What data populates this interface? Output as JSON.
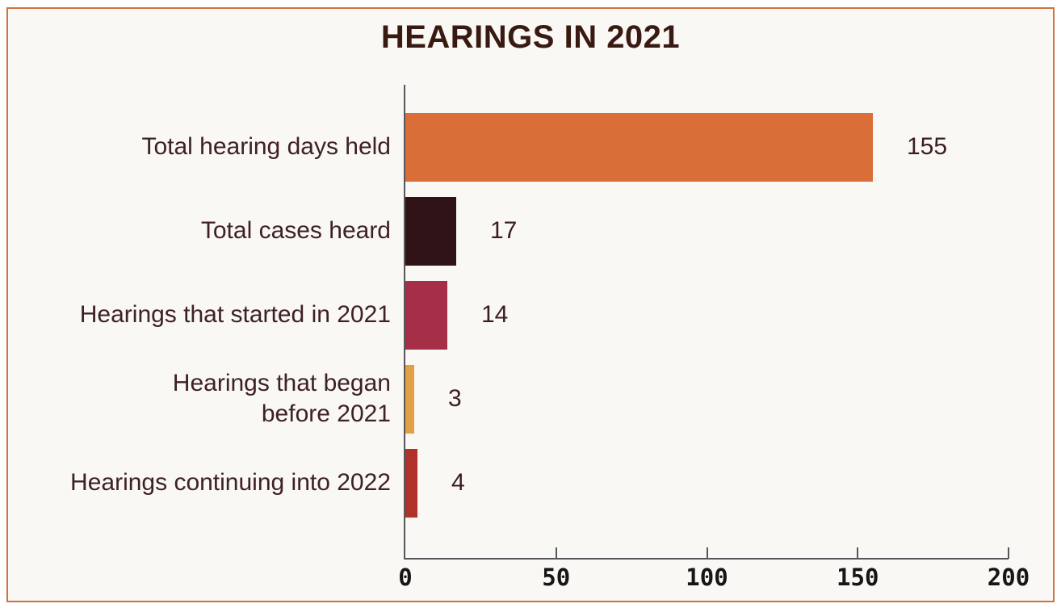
{
  "frame": {
    "border_color": "#d4713a",
    "background_color": "#faf8f4"
  },
  "chart_data": {
    "type": "bar",
    "orientation": "horizontal",
    "title": "HEARINGS IN 2021",
    "categories": [
      "Total hearing days held",
      "Total cases heard",
      "Hearings that started in 2021",
      "Hearings that began\nbefore 2021",
      "Hearings continuing into 2022"
    ],
    "values": [
      155,
      17,
      14,
      3,
      4
    ],
    "value_labels": [
      "155",
      "17",
      "14",
      "3",
      "4"
    ],
    "bar_colors": [
      "#d96e39",
      "#2f1316",
      "#a52f47",
      "#e2a044",
      "#b1322a"
    ],
    "xlabel": "",
    "ylabel": "",
    "xlim": [
      0,
      200
    ],
    "xticks": [
      0,
      50,
      100,
      150,
      200
    ],
    "xtick_labels": [
      "0",
      "50",
      "100",
      "150",
      "200"
    ],
    "grid": false,
    "legend": false,
    "title_color": "#391a12",
    "category_label_color": "#3e2124",
    "value_label_color": "#3c1d1f",
    "axis_color": "#55565a",
    "tick_label_color": "#161616"
  }
}
